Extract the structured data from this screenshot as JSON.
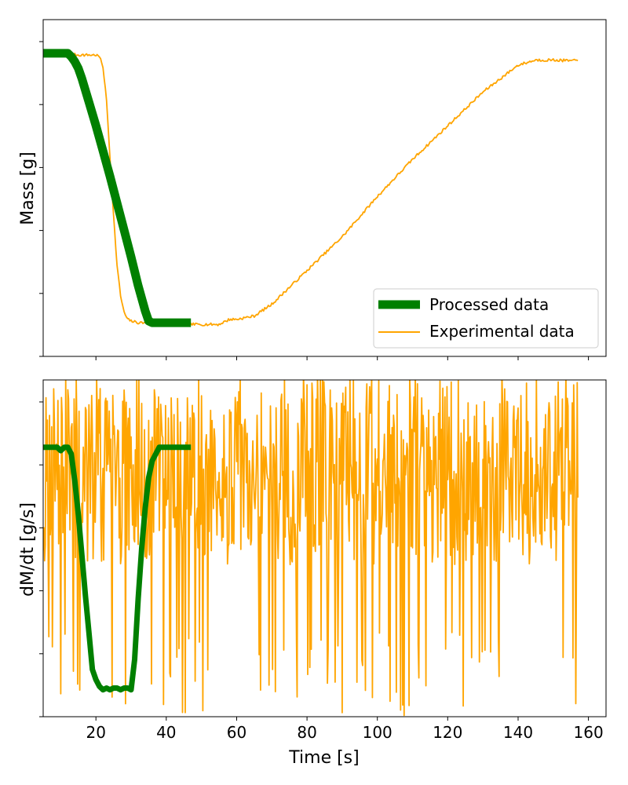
{
  "chart_data": [
    {
      "type": "line",
      "panel": "top",
      "ylabel": "Mass [g]",
      "xlabel": "",
      "xlim": [
        5,
        165
      ],
      "ylim": [
        0,
        1
      ],
      "y_tick_labels_visible": false,
      "legend_placement": "bottom-right",
      "grid": false,
      "series": [
        {
          "name": "Processed data",
          "color": "#008000",
          "x": [
            5,
            10,
            12,
            13,
            14,
            15,
            16,
            17,
            18,
            20,
            22,
            24,
            26,
            28,
            30,
            32,
            34,
            35,
            36,
            38,
            40,
            42,
            44,
            46,
            47
          ],
          "y": [
            0.9,
            0.9,
            0.9,
            0.89,
            0.875,
            0.855,
            0.825,
            0.79,
            0.755,
            0.685,
            0.61,
            0.535,
            0.455,
            0.375,
            0.295,
            0.21,
            0.135,
            0.105,
            0.1,
            0.1,
            0.1,
            0.1,
            0.1,
            0.1,
            0.1
          ]
        },
        {
          "name": "Experimental data",
          "color": "#FFA500",
          "x": [
            5,
            10,
            15,
            18,
            20,
            21,
            22,
            23,
            24,
            25,
            26,
            27,
            28,
            29,
            30,
            32,
            35,
            40,
            45,
            50,
            53,
            55,
            56,
            58,
            60,
            65,
            70,
            75,
            80,
            85,
            90,
            95,
            100,
            105,
            110,
            115,
            120,
            125,
            130,
            135,
            140,
            145,
            150,
            155,
            157
          ],
          "y": [
            0.895,
            0.9,
            0.895,
            0.895,
            0.895,
            0.89,
            0.86,
            0.76,
            0.59,
            0.42,
            0.27,
            0.18,
            0.13,
            0.11,
            0.105,
            0.1,
            0.1,
            0.1,
            0.095,
            0.095,
            0.095,
            0.095,
            0.1,
            0.11,
            0.11,
            0.12,
            0.155,
            0.205,
            0.255,
            0.305,
            0.355,
            0.415,
            0.475,
            0.53,
            0.585,
            0.635,
            0.685,
            0.735,
            0.785,
            0.825,
            0.865,
            0.88,
            0.88,
            0.878,
            0.878
          ]
        }
      ]
    },
    {
      "type": "line",
      "panel": "bottom",
      "ylabel": "dM/dt [g/s]",
      "xlabel": "Time [s]",
      "xlim": [
        5,
        165
      ],
      "ylim": [
        0,
        1
      ],
      "y_tick_labels_visible": false,
      "x_ticks": [
        20,
        40,
        60,
        80,
        100,
        120,
        140,
        160
      ],
      "grid": false,
      "series": [
        {
          "name": "Processed data",
          "color": "#008000",
          "x": [
            5,
            9,
            10,
            11,
            12,
            13,
            14,
            15,
            16,
            17,
            18,
            19,
            20,
            21,
            22,
            23,
            24,
            25,
            26,
            27,
            28,
            29,
            30,
            31,
            32,
            33,
            34,
            35,
            36,
            37,
            38,
            40,
            42,
            44,
            46,
            47
          ],
          "y": [
            0.8,
            0.8,
            0.79,
            0.8,
            0.8,
            0.78,
            0.7,
            0.6,
            0.48,
            0.36,
            0.25,
            0.14,
            0.11,
            0.09,
            0.08,
            0.085,
            0.08,
            0.085,
            0.085,
            0.08,
            0.085,
            0.085,
            0.08,
            0.17,
            0.35,
            0.5,
            0.62,
            0.71,
            0.76,
            0.78,
            0.8,
            0.8,
            0.8,
            0.8,
            0.8,
            0.8
          ]
        },
        {
          "name": "Experimental data",
          "color": "#FFA500",
          "x_range": [
            5,
            157
          ],
          "description_values": "high-frequency noise spanning roughly 0.0 to 1.0 of the axis range"
        }
      ]
    }
  ]
}
